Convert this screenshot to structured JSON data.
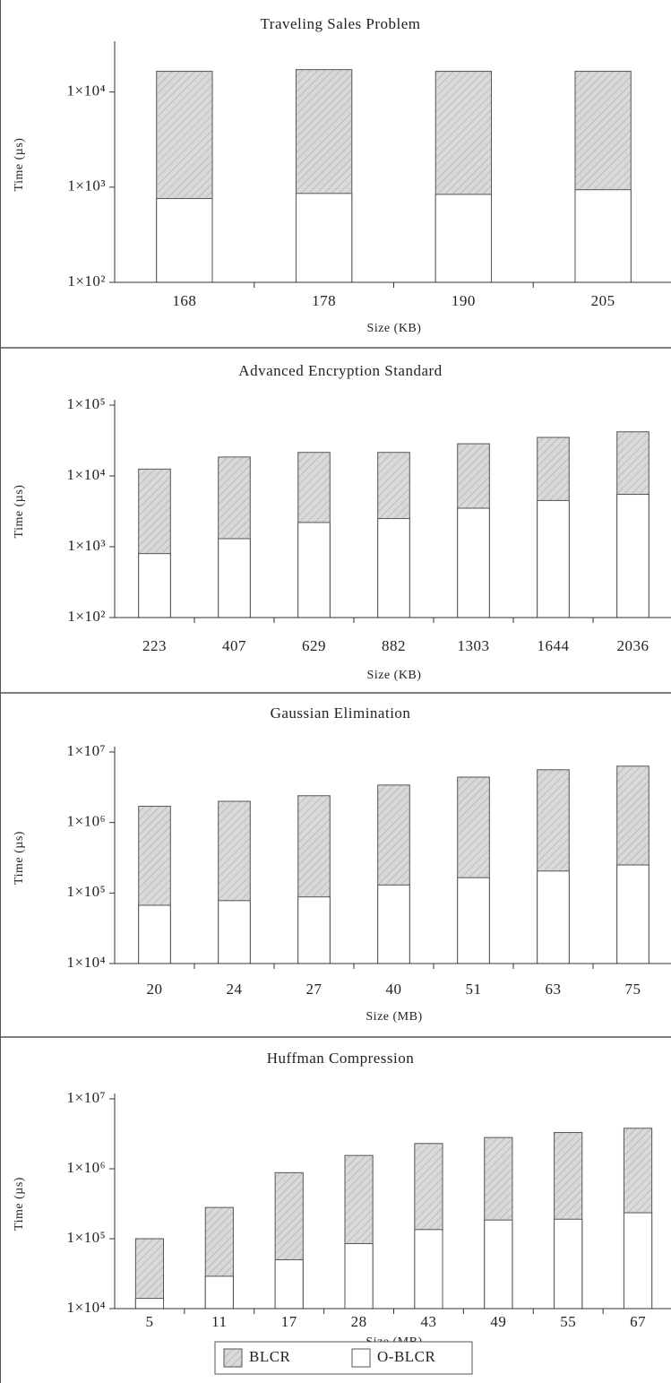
{
  "chart_data": [
    {
      "type": "bar",
      "title": "Traveling Sales Problem",
      "x_label": "Size (KB)",
      "y_label": "Time (µs)",
      "log_scale": true,
      "categories": [
        "168",
        "178",
        "190",
        "205"
      ],
      "series": [
        {
          "name": "BLCR",
          "color": "#d9d9d9",
          "values": [
            16500,
            17200,
            16500,
            16500
          ]
        },
        {
          "name": "O-BLCR",
          "color": "#ffffff",
          "values": [
            760,
            860,
            840,
            940
          ]
        }
      ],
      "ylim": [
        100,
        30000
      ],
      "yticks": [
        {
          "value": 100,
          "label": "1×10²"
        },
        {
          "value": 1000,
          "label": "1×10³"
        },
        {
          "value": 10000,
          "label": "1×10⁴"
        }
      ]
    },
    {
      "type": "bar",
      "title": "Advanced Encryption Standard",
      "x_label": "Size (KB)",
      "y_label": "Time (µs)",
      "log_scale": true,
      "categories": [
        "223",
        "407",
        "629",
        "882",
        "1303",
        "1644",
        "2036"
      ],
      "series": [
        {
          "name": "BLCR",
          "color": "#d9d9d9",
          "values": [
            12500,
            18500,
            21500,
            21500,
            28500,
            35000,
            42000
          ]
        },
        {
          "name": "O-BLCR",
          "color": "#ffffff",
          "values": [
            800,
            1300,
            2200,
            2500,
            3500,
            4500,
            5500
          ]
        }
      ],
      "ylim": [
        100,
        100000
      ],
      "yticks": [
        {
          "value": 100,
          "label": "1×10²"
        },
        {
          "value": 1000,
          "label": "1×10³"
        },
        {
          "value": 10000,
          "label": "1×10⁴"
        },
        {
          "value": 100000,
          "label": "1×10⁵"
        }
      ]
    },
    {
      "type": "bar",
      "title": "Gaussian Elimination",
      "x_label": "Size (MB)",
      "y_label": "Time (µs)",
      "log_scale": true,
      "categories": [
        "20",
        "24",
        "27",
        "40",
        "51",
        "63",
        "75"
      ],
      "series": [
        {
          "name": "BLCR",
          "color": "#d9d9d9",
          "values": [
            1700000,
            2000000,
            2400000,
            3400000,
            4400000,
            5600000,
            6300000
          ]
        },
        {
          "name": "O-BLCR",
          "color": "#ffffff",
          "values": [
            67000,
            78000,
            88000,
            130000,
            165000,
            205000,
            250000
          ]
        }
      ],
      "ylim": [
        10000,
        10000000
      ],
      "yticks": [
        {
          "value": 10000,
          "label": "1×10⁴"
        },
        {
          "value": 100000,
          "label": "1×10⁵"
        },
        {
          "value": 1000000,
          "label": "1×10⁶"
        },
        {
          "value": 10000000,
          "label": "1×10⁷"
        }
      ]
    },
    {
      "type": "bar",
      "title": "Huffman Compression",
      "x_label": "Size (MB)",
      "y_label": "Time (µs)",
      "log_scale": true,
      "legend": "bottom",
      "categories": [
        "5",
        "11",
        "17",
        "28",
        "43",
        "49",
        "55",
        "67"
      ],
      "series": [
        {
          "name": "BLCR",
          "color": "#d9d9d9",
          "values": [
            100000,
            280000,
            880000,
            1550000,
            2300000,
            2800000,
            3300000,
            3800000
          ]
        },
        {
          "name": "O-BLCR",
          "color": "#ffffff",
          "values": [
            14000,
            29000,
            50000,
            85000,
            135000,
            185000,
            190000,
            235000
          ]
        }
      ],
      "ylim": [
        10000,
        10000000
      ],
      "yticks": [
        {
          "value": 10000,
          "label": "1×10⁴"
        },
        {
          "value": 100000,
          "label": "1×10⁵"
        },
        {
          "value": 1000000,
          "label": "1×10⁶"
        },
        {
          "value": 10000000,
          "label": "1×10⁷"
        }
      ]
    }
  ]
}
